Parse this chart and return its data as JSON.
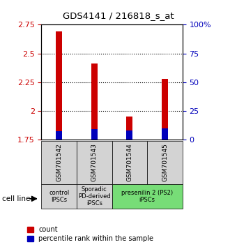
{
  "title": "GDS4141 / 216818_s_at",
  "samples": [
    "GSM701542",
    "GSM701543",
    "GSM701544",
    "GSM701545"
  ],
  "count_values": [
    2.69,
    2.41,
    1.95,
    2.28
  ],
  "percentile_values": [
    1.82,
    1.84,
    1.83,
    1.85
  ],
  "bar_bottom": 1.75,
  "ylim": [
    1.75,
    2.75
  ],
  "yticks_left": [
    1.75,
    2.0,
    2.25,
    2.5,
    2.75
  ],
  "yticks_right": [
    0,
    25,
    50,
    75,
    100
  ],
  "ytick_labels_left": [
    "1.75",
    "2",
    "2.25",
    "2.5",
    "2.75"
  ],
  "ytick_labels_right": [
    "0",
    "25",
    "50",
    "75",
    "100%"
  ],
  "grid_values": [
    2.0,
    2.25,
    2.5
  ],
  "count_color": "#cc0000",
  "percentile_color": "#0000bb",
  "bar_width": 0.18,
  "groups": [
    {
      "label": "control\nIPSCs",
      "start": 0,
      "end": 1,
      "color": "#d3d3d3"
    },
    {
      "label": "Sporadic\nPD-derived\niPSCs",
      "start": 1,
      "end": 2,
      "color": "#d3d3d3"
    },
    {
      "label": "presenilin 2 (PS2)\niPSCs",
      "start": 2,
      "end": 4,
      "color": "#77dd77"
    }
  ],
  "cell_line_label": "cell line",
  "legend_count_label": "count",
  "legend_percentile_label": "percentile rank within the sample",
  "left_tick_color": "#cc0000",
  "right_tick_color": "#0000bb"
}
